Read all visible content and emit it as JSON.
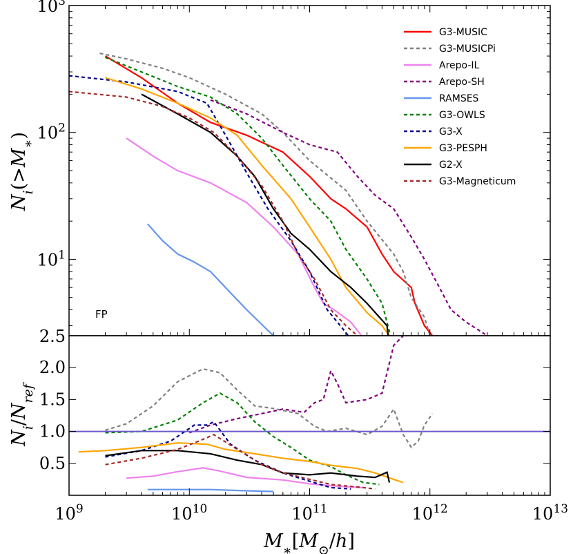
{
  "chart_data": {
    "type": "line",
    "xlabel": "M_*[M_⊙/h]",
    "x_scale": "log",
    "xlim": [
      1000000000.0,
      10000000000000.0
    ],
    "x_ticks": [
      {
        "value": 1000000000.0,
        "base": "10",
        "exp": "9"
      },
      {
        "value": 10000000000.0,
        "base": "10",
        "exp": "10"
      },
      {
        "value": 100000000000.0,
        "base": "10",
        "exp": "11"
      },
      {
        "value": 1000000000000.0,
        "base": "10",
        "exp": "12"
      },
      {
        "value": 10000000000000.0,
        "base": "10",
        "exp": "13"
      }
    ],
    "top_panel": {
      "ylabel": "N_i(>M_*)",
      "y_scale": "log",
      "ylim": [
        2.5,
        1000
      ],
      "y_ticks": [
        {
          "value": 1000,
          "base": "10",
          "exp": "3"
        },
        {
          "value": 100,
          "base": "10",
          "exp": "2"
        },
        {
          "value": 10,
          "base": "10",
          "exp": "1"
        },
        {
          "value": 2.5,
          "base": "2.5",
          "exp": ""
        }
      ],
      "annotation": "FP"
    },
    "bottom_panel": {
      "ylabel": "N_i/N_ref",
      "y_scale": "linear",
      "ylim": [
        0,
        2.5
      ],
      "y_ticks": [
        "0.5",
        "1.0",
        "1.5",
        "2.0"
      ],
      "y_tick_values": [
        0.5,
        1.0,
        1.5,
        2.0
      ],
      "reference_line": 1.0
    },
    "series": [
      {
        "name": "G3-MUSIC",
        "color": "#ff0000",
        "dash": "solid",
        "top": [
          [
            2000000000.0,
            400
          ],
          [
            4000000000.0,
            270
          ],
          [
            8000000000.0,
            170
          ],
          [
            15000000000.0,
            120
          ],
          [
            30000000000.0,
            95
          ],
          [
            60000000000.0,
            70
          ],
          [
            100000000000.0,
            45
          ],
          [
            150000000000.0,
            30
          ],
          [
            200000000000.0,
            25
          ],
          [
            300000000000.0,
            18
          ],
          [
            400000000000.0,
            11
          ],
          [
            500000000000.0,
            8
          ],
          [
            700000000000.0,
            6
          ],
          [
            750000000000.0,
            4.5
          ],
          [
            900000000000.0,
            3
          ],
          [
            1050000000000.0,
            2.5
          ]
        ],
        "ratio": []
      },
      {
        "name": "G3-MUSICPi",
        "color": "#808080",
        "dash": "dashed",
        "top": [
          [
            1800000000.0,
            420
          ],
          [
            3000000000.0,
            380
          ],
          [
            6000000000.0,
            320
          ],
          [
            10000000000.0,
            270
          ],
          [
            20000000000.0,
            200
          ],
          [
            40000000000.0,
            140
          ],
          [
            60000000000.0,
            100
          ],
          [
            100000000000.0,
            60
          ],
          [
            200000000000.0,
            35
          ],
          [
            300000000000.0,
            20
          ],
          [
            500000000000.0,
            11
          ],
          [
            600000000000.0,
            8
          ],
          [
            700000000000.0,
            5
          ],
          [
            900000000000.0,
            3.5
          ],
          [
            1000000000000.0,
            2.5
          ]
        ],
        "ratio": [
          [
            2000000000.0,
            1.02
          ],
          [
            3000000000.0,
            1.12
          ],
          [
            5000000000.0,
            1.4
          ],
          [
            8000000000.0,
            1.78
          ],
          [
            13000000000.0,
            1.98
          ],
          [
            18000000000.0,
            1.92
          ],
          [
            25000000000.0,
            1.65
          ],
          [
            35000000000.0,
            1.4
          ],
          [
            50000000000.0,
            1.36
          ],
          [
            80000000000.0,
            1.28
          ],
          [
            110000000000.0,
            1.08
          ],
          [
            140000000000.0,
            1.0
          ],
          [
            200000000000.0,
            1.05
          ],
          [
            300000000000.0,
            0.95
          ],
          [
            400000000000.0,
            1.08
          ],
          [
            500000000000.0,
            1.35
          ],
          [
            600000000000.0,
            0.95
          ],
          [
            700000000000.0,
            0.75
          ],
          [
            800000000000.0,
            0.85
          ],
          [
            900000000000.0,
            1.1
          ],
          [
            1050000000000.0,
            1.28
          ]
        ]
      },
      {
        "name": "Arepo-IL",
        "color": "#ee82ee",
        "dash": "solid",
        "top": [
          [
            3000000000.0,
            90
          ],
          [
            5000000000.0,
            65
          ],
          [
            8000000000.0,
            50
          ],
          [
            15000000000.0,
            40
          ],
          [
            30000000000.0,
            28
          ],
          [
            50000000000.0,
            18
          ],
          [
            80000000000.0,
            11
          ],
          [
            110000000000.0,
            6
          ],
          [
            130000000000.0,
            4.5
          ],
          [
            160000000000.0,
            4
          ],
          [
            220000000000.0,
            3.2
          ],
          [
            270000000000.0,
            2.5
          ]
        ],
        "ratio": [
          [
            3000000000.0,
            0.27
          ],
          [
            5000000000.0,
            0.3
          ],
          [
            8000000000.0,
            0.37
          ],
          [
            13000000000.0,
            0.43
          ],
          [
            18000000000.0,
            0.38
          ],
          [
            30000000000.0,
            0.28
          ],
          [
            60000000000.0,
            0.24
          ],
          [
            100000000000.0,
            0.18
          ],
          [
            150000000000.0,
            0.15
          ],
          [
            220000000000.0,
            0.13
          ],
          [
            280000000000.0,
            0.12
          ]
        ]
      },
      {
        "name": "Arepo-SH",
        "color": "#800080",
        "dash": "dashed",
        "top": [
          [
            15000000000.0,
            180
          ],
          [
            30000000000.0,
            140
          ],
          [
            60000000000.0,
            100
          ],
          [
            100000000000.0,
            80
          ],
          [
            170000000000.0,
            70
          ],
          [
            250000000000.0,
            45
          ],
          [
            350000000000.0,
            32
          ],
          [
            500000000000.0,
            25
          ],
          [
            700000000000.0,
            15
          ],
          [
            900000000000.0,
            10
          ],
          [
            1200000000000.0,
            6
          ],
          [
            1500000000000.0,
            4
          ],
          [
            2000000000000.0,
            3.2
          ],
          [
            3000000000000.0,
            2.5
          ]
        ],
        "ratio": [
          [
            10000000000.0,
            0.98
          ],
          [
            15000000000.0,
            1.1
          ],
          [
            25000000000.0,
            1.2
          ],
          [
            40000000000.0,
            1.28
          ],
          [
            60000000000.0,
            1.35
          ],
          [
            90000000000.0,
            1.3
          ],
          [
            110000000000.0,
            1.45
          ],
          [
            130000000000.0,
            1.5
          ],
          [
            150000000000.0,
            1.95
          ],
          [
            170000000000.0,
            1.75
          ],
          [
            200000000000.0,
            1.45
          ],
          [
            300000000000.0,
            1.5
          ],
          [
            400000000000.0,
            1.6
          ],
          [
            500000000000.0,
            2.35
          ],
          [
            600000000000.0,
            2.5
          ]
        ]
      },
      {
        "name": "RAMSES",
        "color": "#6495ed",
        "dash": "solid",
        "top": [
          [
            4500000000.0,
            19
          ],
          [
            6000000000.0,
            14
          ],
          [
            8000000000.0,
            11
          ],
          [
            11000000000.0,
            9.5
          ],
          [
            15000000000.0,
            8
          ],
          [
            20000000000.0,
            6
          ],
          [
            30000000000.0,
            4
          ],
          [
            50000000000.0,
            2.5
          ]
        ],
        "ratio": [
          [
            4500000000.0,
            0.09
          ],
          [
            8000000000.0,
            0.09
          ],
          [
            15000000000.0,
            0.09
          ],
          [
            30000000000.0,
            0.07
          ],
          [
            50000000000.0,
            0.06
          ]
        ]
      },
      {
        "name": "G3-OWLS",
        "color": "#008000",
        "dash": "dashed",
        "top": [
          [
            2000000000.0,
            390
          ],
          [
            4000000000.0,
            300
          ],
          [
            8000000000.0,
            230
          ],
          [
            15000000000.0,
            190
          ],
          [
            25000000000.0,
            140
          ],
          [
            40000000000.0,
            90
          ],
          [
            60000000000.0,
            55
          ],
          [
            100000000000.0,
            30
          ],
          [
            150000000000.0,
            20
          ],
          [
            200000000000.0,
            12
          ],
          [
            300000000000.0,
            7
          ],
          [
            400000000000.0,
            4.5
          ],
          [
            470000000000.0,
            2.5
          ]
        ],
        "ratio": [
          [
            2000000000.0,
            0.98
          ],
          [
            4000000000.0,
            1.0
          ],
          [
            8000000000.0,
            1.18
          ],
          [
            13000000000.0,
            1.45
          ],
          [
            18000000000.0,
            1.6
          ],
          [
            25000000000.0,
            1.45
          ],
          [
            35000000000.0,
            1.15
          ],
          [
            50000000000.0,
            0.92
          ],
          [
            70000000000.0,
            0.75
          ],
          [
            100000000000.0,
            0.55
          ],
          [
            150000000000.0,
            0.45
          ],
          [
            200000000000.0,
            0.32
          ],
          [
            280000000000.0,
            0.2
          ],
          [
            380000000000.0,
            0.17
          ]
        ]
      },
      {
        "name": "G3-X",
        "color": "#00008b",
        "dash": "dashed",
        "top": [
          [
            1000000000.0,
            280
          ],
          [
            3000000000.0,
            250
          ],
          [
            8000000000.0,
            210
          ],
          [
            14000000000.0,
            170
          ],
          [
            20000000000.0,
            95
          ],
          [
            30000000000.0,
            48
          ],
          [
            45000000000.0,
            25
          ],
          [
            70000000000.0,
            14
          ],
          [
            100000000000.0,
            8
          ],
          [
            140000000000.0,
            4
          ],
          [
            180000000000.0,
            3
          ],
          [
            210000000000.0,
            2.5
          ]
        ],
        "ratio": [
          [
            2000000000.0,
            0.6
          ],
          [
            4000000000.0,
            0.7
          ],
          [
            7000000000.0,
            0.85
          ],
          [
            11000000000.0,
            1.1
          ],
          [
            14000000000.0,
            1.1
          ],
          [
            16000000000.0,
            1.15
          ],
          [
            22000000000.0,
            0.8
          ],
          [
            35000000000.0,
            0.55
          ],
          [
            60000000000.0,
            0.35
          ],
          [
            100000000000.0,
            0.22
          ],
          [
            150000000000.0,
            0.12
          ],
          [
            220000000000.0,
            0.1
          ]
        ]
      },
      {
        "name": "G3-PESPH",
        "color": "#ffa500",
        "dash": "solid",
        "top": [
          [
            2000000000.0,
            270
          ],
          [
            4000000000.0,
            220
          ],
          [
            8000000000.0,
            170
          ],
          [
            15000000000.0,
            130
          ],
          [
            25000000000.0,
            95
          ],
          [
            40000000000.0,
            55
          ],
          [
            70000000000.0,
            30
          ],
          [
            100000000000.0,
            18
          ],
          [
            150000000000.0,
            10
          ],
          [
            200000000000.0,
            6
          ],
          [
            300000000000.0,
            3.8
          ],
          [
            400000000000.0,
            3
          ],
          [
            460000000000.0,
            2.5
          ]
        ],
        "ratio": [
          [
            1200000000.0,
            0.68
          ],
          [
            2000000000.0,
            0.7
          ],
          [
            4000000000.0,
            0.75
          ],
          [
            8000000000.0,
            0.82
          ],
          [
            14000000000.0,
            0.8
          ],
          [
            20000000000.0,
            0.72
          ],
          [
            35000000000.0,
            0.65
          ],
          [
            60000000000.0,
            0.58
          ],
          [
            100000000000.0,
            0.53
          ],
          [
            150000000000.0,
            0.47
          ],
          [
            250000000000.0,
            0.42
          ],
          [
            350000000000.0,
            0.35
          ],
          [
            500000000000.0,
            0.25
          ],
          [
            600000000000.0,
            0.2
          ]
        ]
      },
      {
        "name": "G2-X",
        "color": "#000000",
        "dash": "solid",
        "top": [
          [
            4000000000.0,
            200
          ],
          [
            8000000000.0,
            140
          ],
          [
            15000000000.0,
            100
          ],
          [
            25000000000.0,
            65
          ],
          [
            35000000000.0,
            45
          ],
          [
            50000000000.0,
            25
          ],
          [
            70000000000.0,
            16
          ],
          [
            100000000000.0,
            12
          ],
          [
            150000000000.0,
            8
          ],
          [
            220000000000.0,
            6
          ],
          [
            300000000000.0,
            4.5
          ],
          [
            440000000000.0,
            3
          ],
          [
            450000000000.0,
            2.5
          ]
        ],
        "ratio": [
          [
            2000000000.0,
            0.62
          ],
          [
            4000000000.0,
            0.7
          ],
          [
            8000000000.0,
            0.7
          ],
          [
            15000000000.0,
            0.65
          ],
          [
            25000000000.0,
            0.55
          ],
          [
            40000000000.0,
            0.48
          ],
          [
            60000000000.0,
            0.35
          ],
          [
            100000000000.0,
            0.32
          ],
          [
            150000000000.0,
            0.35
          ],
          [
            250000000000.0,
            0.3
          ],
          [
            350000000000.0,
            0.28
          ],
          [
            440000000000.0,
            0.36
          ],
          [
            460000000000.0,
            0.2
          ]
        ]
      },
      {
        "name": "G3-Magneticum",
        "color": "#a52a2a",
        "dash": "dashed",
        "top": [
          [
            1000000000.0,
            210
          ],
          [
            3000000000.0,
            190
          ],
          [
            6000000000.0,
            160
          ],
          [
            10000000000.0,
            130
          ],
          [
            16000000000.0,
            100
          ],
          [
            25000000000.0,
            65
          ],
          [
            40000000000.0,
            38
          ],
          [
            60000000000.0,
            20
          ],
          [
            80000000000.0,
            11
          ],
          [
            110000000000.0,
            7
          ],
          [
            150000000000.0,
            4
          ],
          [
            200000000000.0,
            3
          ],
          [
            250000000000.0,
            2.5
          ]
        ],
        "ratio": [
          [
            2000000000.0,
            0.48
          ],
          [
            4000000000.0,
            0.58
          ],
          [
            8000000000.0,
            0.72
          ],
          [
            12000000000.0,
            0.85
          ],
          [
            16000000000.0,
            0.95
          ],
          [
            25000000000.0,
            0.72
          ],
          [
            40000000000.0,
            0.48
          ],
          [
            60000000000.0,
            0.35
          ],
          [
            100000000000.0,
            0.25
          ],
          [
            150000000000.0,
            0.17
          ],
          [
            250000000000.0,
            0.13
          ],
          [
            350000000000.0,
            0.1
          ]
        ]
      }
    ]
  }
}
